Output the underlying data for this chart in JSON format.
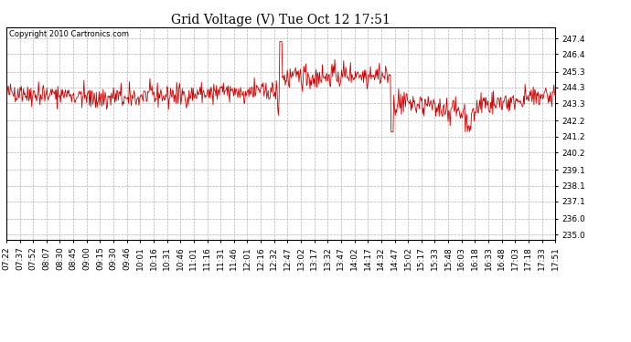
{
  "title": "Grid Voltage (V) Tue Oct 12 17:51",
  "copyright_text": "Copyright 2010 Cartronics.com",
  "line_color": "#cc0000",
  "bg_color": "#ffffff",
  "plot_bg_color": "#ffffff",
  "grid_color": "#b0b0b0",
  "grid_style": "--",
  "yticks": [
    235.0,
    236.0,
    237.1,
    238.1,
    239.1,
    240.2,
    241.2,
    242.2,
    243.3,
    244.3,
    245.3,
    246.4,
    247.4
  ],
  "ylim": [
    234.7,
    248.1
  ],
  "x_tick_labels": [
    "07:22",
    "07:37",
    "07:52",
    "08:07",
    "08:30",
    "08:45",
    "09:00",
    "09:15",
    "09:30",
    "09:46",
    "10:01",
    "10:16",
    "10:31",
    "10:46",
    "11:01",
    "11:16",
    "11:31",
    "11:46",
    "12:01",
    "12:16",
    "12:32",
    "12:47",
    "13:02",
    "13:17",
    "13:32",
    "13:47",
    "14:02",
    "14:17",
    "14:32",
    "14:47",
    "15:02",
    "15:17",
    "15:33",
    "15:48",
    "16:03",
    "16:18",
    "16:33",
    "16:48",
    "17:03",
    "17:18",
    "17:33",
    "17:51"
  ],
  "title_fontsize": 10,
  "tick_fontsize": 6.5,
  "copyright_fontsize": 6
}
